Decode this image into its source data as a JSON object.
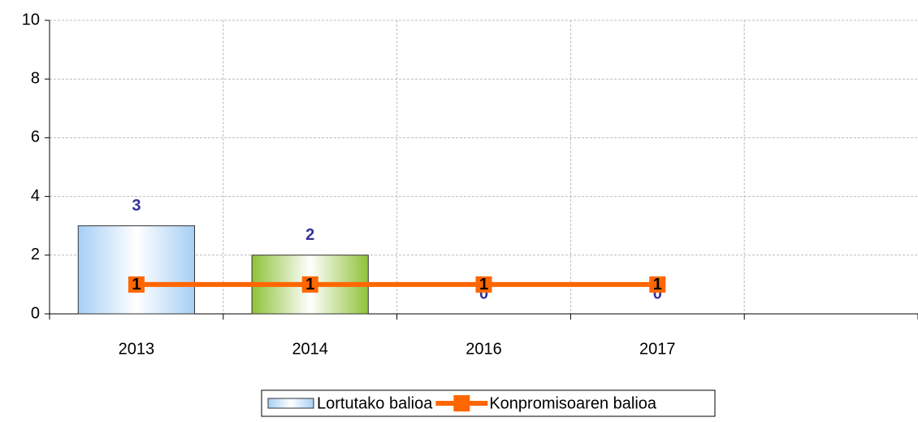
{
  "chart_data": {
    "type": "bar",
    "categories": [
      "2013",
      "2014",
      "2016",
      "2017",
      null
    ],
    "series": [
      {
        "name": "Lortutako balioa",
        "type": "bar",
        "color": "#a6cff5",
        "colors": [
          "#a6cff5",
          "#8fc23a",
          "#a6cff5",
          "#8fc23a"
        ],
        "label_color": "#333399",
        "values": [
          3,
          2,
          0,
          0,
          null
        ]
      },
      {
        "name": "Konpromisoaren balioa",
        "type": "line",
        "color": "#ff6600",
        "values": [
          1,
          1,
          1,
          1,
          null
        ]
      }
    ],
    "ylim": [
      0,
      10
    ],
    "yticks": [
      0,
      2,
      4,
      6,
      8,
      10
    ],
    "grid": true
  }
}
